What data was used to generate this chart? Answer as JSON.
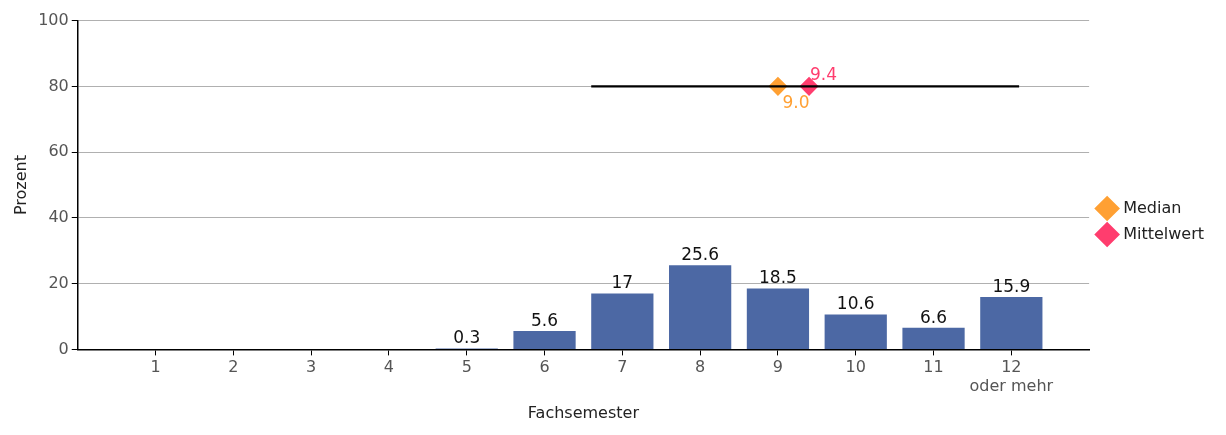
{
  "chart_data": {
    "type": "bar",
    "xlabel": "Fachsemester",
    "ylabel": "Prozent",
    "xlim": [
      0,
      13
    ],
    "xticks": [
      1,
      2,
      3,
      4,
      5,
      6,
      7,
      8,
      9,
      10,
      11,
      {
        "value": 12,
        "label": "12\noder mehr"
      }
    ],
    "series": [
      {
        "color": "#4c68a4",
        "x": [
          1,
          2,
          3,
          4,
          5,
          6,
          7,
          8,
          9,
          10,
          11,
          12
        ],
        "values": [
          0,
          0,
          0,
          0,
          0.3,
          5.6,
          17,
          25.6,
          18.5,
          10.6,
          6.6,
          15.9
        ],
        "value_labels": [
          null,
          null,
          null,
          null,
          "0.3",
          "5.6",
          "17",
          "25.6",
          "18.5",
          "10.6",
          "6.6",
          "15.9"
        ]
      },
      {
        "type": "line",
        "color": "#000000",
        "marker": "none",
        "x": [
          6.6,
          12.1
        ],
        "values": [
          80,
          80
        ]
      },
      {
        "type": "line",
        "name": "Median",
        "color": "#ffa033",
        "marker": "diamond",
        "x": [
          9.0
        ],
        "values": [
          80
        ]
      },
      {
        "type": "line",
        "name": "Mittelwert",
        "color": "#ff3d6e",
        "marker": "diamond",
        "x": [
          9.4
        ],
        "values": [
          80
        ]
      }
    ],
    "annotations": [
      {
        "text": "9.0",
        "x": 9.0,
        "y": 80
      },
      {
        "text": "9.4",
        "x": 9.4,
        "y": 80
      }
    ],
    "ylim": [
      0,
      100
    ],
    "yticks": [
      0,
      20,
      40,
      60,
      80,
      100
    ],
    "grid": "y",
    "legend": "right"
  }
}
